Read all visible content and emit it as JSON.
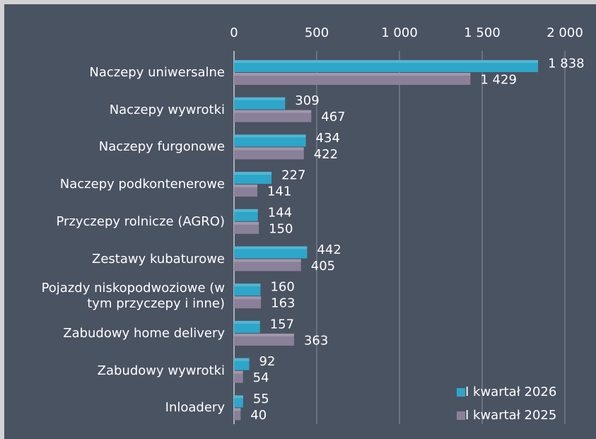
{
  "chart_data": {
    "type": "hbar",
    "categories": [
      "Naczepy uniwersalne",
      "Naczepy wywrotki",
      "Naczepy furgonowe",
      "Naczepy podkontenerowe",
      "Przyczepy rolnicze (AGRO)",
      "Zestawy kubaturowe",
      "Pojazdy niskopodwoziowe (w tym przyczepy i inne)",
      "Zabudowy home delivery",
      "Zabudowy wywrotki",
      "Inloadery"
    ],
    "series": [
      {
        "name": "I kwartał 2026",
        "color": "#2ea6c9",
        "values": [
          1838,
          309,
          434,
          227,
          144,
          442,
          160,
          157,
          92,
          55
        ],
        "value_labels": [
          "1 838",
          "309",
          "434",
          "227",
          "144",
          "442",
          "160",
          "157",
          "92",
          "55"
        ]
      },
      {
        "name": "I kwartał 2025",
        "color": "#8b8099",
        "values": [
          1429,
          467,
          422,
          141,
          150,
          405,
          163,
          363,
          54,
          40
        ],
        "value_labels": [
          "1 429",
          "467",
          "422",
          "141",
          "150",
          "405",
          "163",
          "363",
          "54",
          "40"
        ]
      }
    ],
    "xlim": [
      0,
      2000
    ],
    "xticks": [
      0,
      500,
      {
        "value": 1000,
        "label": "1 000"
      },
      {
        "value": 1500,
        "label": "1 500"
      },
      {
        "value": 2000,
        "label": "2 000"
      }
    ],
    "grid": true,
    "legend": "lower right"
  }
}
